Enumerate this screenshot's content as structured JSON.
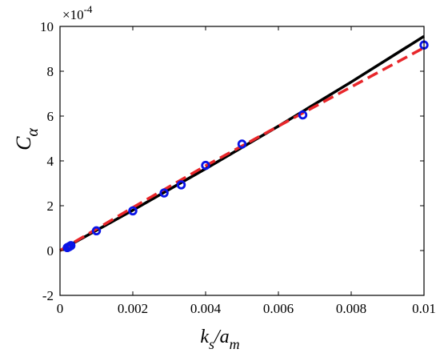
{
  "chart_data": {
    "type": "line",
    "xlabel": {
      "main": "k",
      "sub1": "s",
      "mid": "/a",
      "sub2": "m"
    },
    "ylabel": {
      "main": "C",
      "sub": "α"
    },
    "exponent_label": "×10",
    "exponent_power": "-4",
    "xlim": [
      0,
      0.01
    ],
    "ylim": [
      -2,
      10
    ],
    "x_ticks": [
      0,
      0.002,
      0.004,
      0.006,
      0.008,
      0.01
    ],
    "x_tick_labels": [
      "0",
      "0.002",
      "0.004",
      "0.006",
      "0.008",
      "0.01"
    ],
    "y_ticks": [
      -2,
      0,
      2,
      4,
      6,
      8,
      10
    ],
    "y_tick_labels": [
      "-2",
      "0",
      "2",
      "4",
      "6",
      "8",
      "10"
    ],
    "grid": false,
    "colors": {
      "solid": "#000000",
      "dashed": "#e8262a",
      "markers": "#0a14e6"
    },
    "series": [
      {
        "style": "markers",
        "x": [
          0.0002,
          0.00025,
          0.0003,
          0.001,
          0.002,
          0.00286,
          0.00333,
          0.004,
          0.005,
          0.00667,
          0.01
        ],
        "y": [
          0.13,
          0.17,
          0.22,
          0.88,
          1.77,
          2.57,
          2.93,
          3.8,
          4.75,
          6.05,
          9.17
        ]
      },
      {
        "style": "solid",
        "x": [
          0,
          0.002,
          0.004,
          0.006,
          0.008,
          0.01
        ],
        "y": [
          0,
          1.8,
          3.65,
          5.55,
          7.52,
          9.56
        ]
      },
      {
        "style": "dashed",
        "x": [
          0,
          0.002,
          0.004,
          0.006,
          0.008,
          0.01
        ],
        "y": [
          0,
          1.92,
          3.78,
          5.55,
          7.3,
          9.05
        ]
      }
    ]
  }
}
